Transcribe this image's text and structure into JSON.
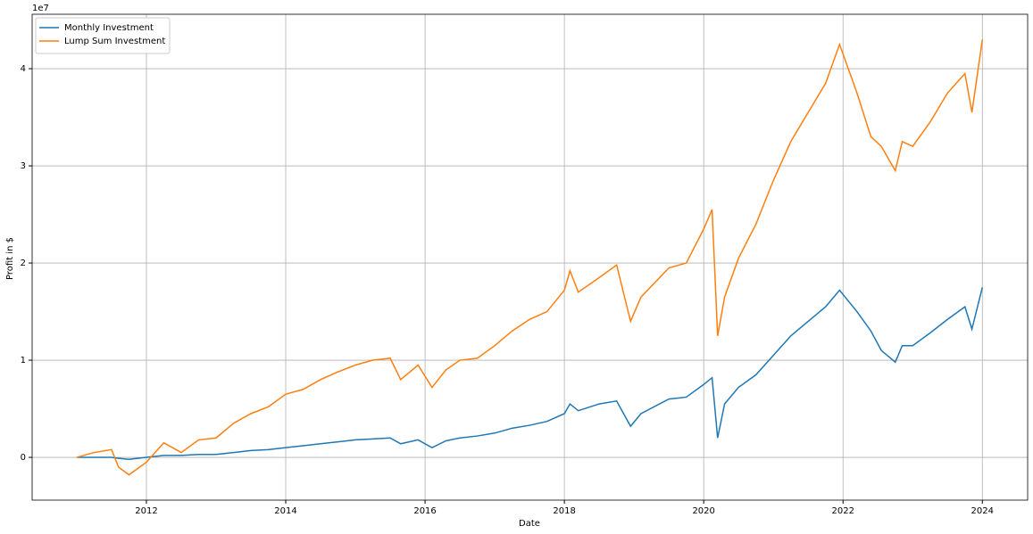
{
  "chart_data": {
    "type": "line",
    "xlabel": "Date",
    "ylabel": "Profit in $",
    "y_offset_label": "1e7",
    "x": [
      2011.0,
      2011.25,
      2011.5,
      2011.6,
      2011.75,
      2012.0,
      2012.25,
      2012.5,
      2012.75,
      2013.0,
      2013.25,
      2013.5,
      2013.75,
      2014.0,
      2014.25,
      2014.5,
      2014.75,
      2015.0,
      2015.25,
      2015.5,
      2015.65,
      2015.9,
      2016.1,
      2016.3,
      2016.5,
      2016.75,
      2017.0,
      2017.25,
      2017.5,
      2017.75,
      2018.0,
      2018.08,
      2018.2,
      2018.5,
      2018.75,
      2018.95,
      2019.1,
      2019.5,
      2019.75,
      2020.0,
      2020.12,
      2020.2,
      2020.3,
      2020.5,
      2020.75,
      2021.0,
      2021.25,
      2021.5,
      2021.75,
      2021.95,
      2022.2,
      2022.4,
      2022.55,
      2022.75,
      2022.85,
      2023.0,
      2023.25,
      2023.5,
      2023.75,
      2023.85,
      2024.0
    ],
    "series": [
      {
        "name": "Monthly Investment",
        "color": "#1f77b4",
        "values": [
          0,
          0.0,
          0.0,
          -0.01,
          -0.02,
          0.0,
          0.02,
          0.02,
          0.03,
          0.03,
          0.05,
          0.07,
          0.08,
          0.1,
          0.12,
          0.14,
          0.16,
          0.18,
          0.19,
          0.2,
          0.14,
          0.18,
          0.1,
          0.17,
          0.2,
          0.22,
          0.25,
          0.3,
          0.33,
          0.37,
          0.45,
          0.55,
          0.48,
          0.55,
          0.58,
          0.32,
          0.45,
          0.6,
          0.62,
          0.75,
          0.82,
          0.2,
          0.55,
          0.72,
          0.85,
          1.05,
          1.25,
          1.4,
          1.55,
          1.72,
          1.5,
          1.3,
          1.1,
          0.98,
          1.15,
          1.15,
          1.28,
          1.42,
          1.55,
          1.32,
          1.75
        ]
      },
      {
        "name": "Lump Sum Investment",
        "color": "#ff7f0e",
        "values": [
          0,
          0.05,
          0.08,
          -0.1,
          -0.18,
          -0.05,
          0.15,
          0.05,
          0.18,
          0.2,
          0.35,
          0.45,
          0.52,
          0.65,
          0.7,
          0.8,
          0.88,
          0.95,
          1.0,
          1.02,
          0.8,
          0.95,
          0.72,
          0.9,
          1.0,
          1.02,
          1.15,
          1.3,
          1.42,
          1.5,
          1.72,
          1.92,
          1.7,
          1.85,
          1.98,
          1.4,
          1.65,
          1.95,
          2.0,
          2.35,
          2.55,
          1.25,
          1.65,
          2.05,
          2.4,
          2.85,
          3.25,
          3.55,
          3.85,
          4.25,
          3.75,
          3.3,
          3.2,
          2.95,
          3.25,
          3.2,
          3.45,
          3.75,
          3.95,
          3.55,
          4.3
        ]
      }
    ],
    "xlim": [
      2010.36,
      2024.65
    ],
    "xticks": [
      2012,
      2014,
      2016,
      2018,
      2020,
      2022,
      2024
    ],
    "ylim": [
      -0.44,
      4.56
    ],
    "yticks": [
      0,
      1,
      2,
      3,
      4
    ],
    "grid": true,
    "legend": "upper-left"
  }
}
